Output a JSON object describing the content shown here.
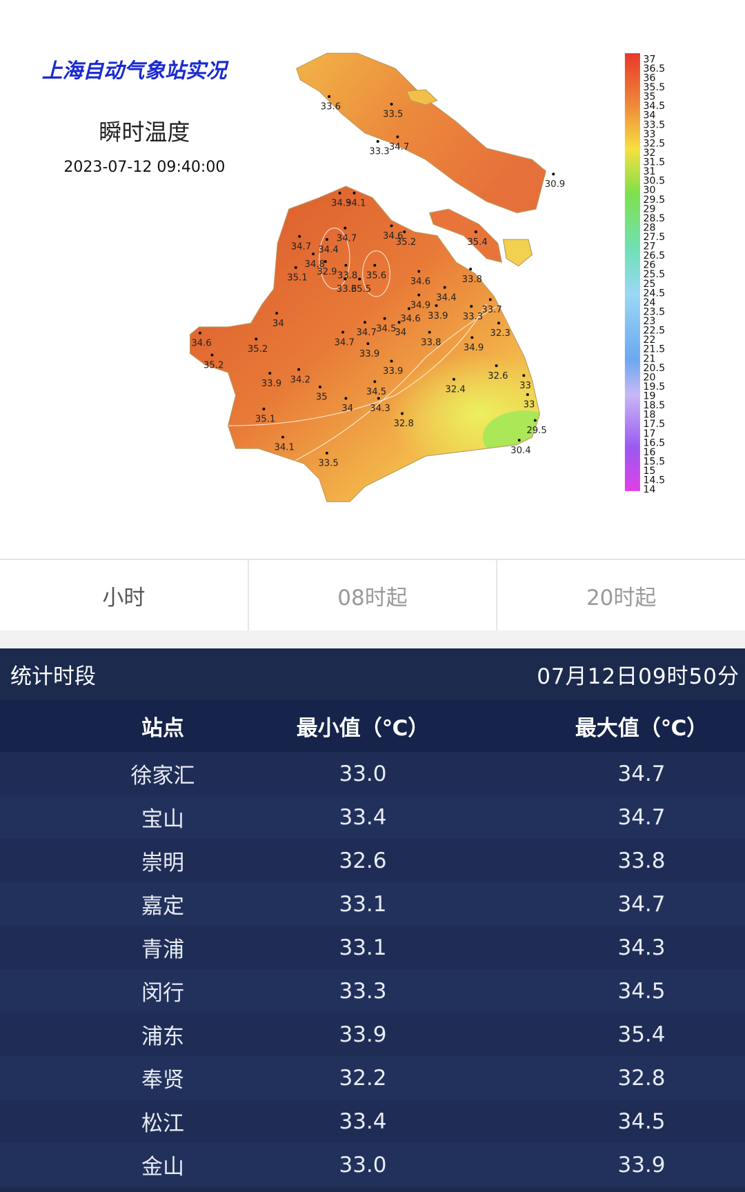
{
  "map": {
    "title": "上海自动气象站实况",
    "subtitle": "瞬时温度",
    "time": "2023-07-12 09:40:00",
    "scale_labels": [
      "37",
      "36.5",
      "36",
      "35.5",
      "35",
      "34.5",
      "34",
      "33.5",
      "33",
      "32.5",
      "32",
      "31.5",
      "31",
      "30.5",
      "30",
      "29.5",
      "29",
      "28.5",
      "28",
      "27.5",
      "27",
      "26.5",
      "26",
      "25.5",
      "25",
      "24.5",
      "24",
      "23.5",
      "23",
      "22.5",
      "22",
      "21.5",
      "21",
      "20.5",
      "20",
      "19.5",
      "19",
      "18.5",
      "18",
      "17.5",
      "17",
      "16.5",
      "16",
      "15.5",
      "15",
      "14.5",
      "14"
    ],
    "stations": [
      "33.6",
      "33.5",
      "33.3",
      "34.7",
      "30.9",
      "34.9",
      "34.1",
      "34.7",
      "34.4",
      "34.7",
      "34.6",
      "35.2",
      "35.4",
      "34.8",
      "32.9",
      "35.1",
      "33.8",
      "33.6",
      "35.5",
      "35.6",
      "34.6",
      "33.8",
      "34.4",
      "34.9",
      "33.9",
      "33.3",
      "33.7",
      "34",
      "34.6",
      "34.7",
      "34.5",
      "34",
      "32.3",
      "34.6",
      "35.2",
      "34.7",
      "33.9",
      "33.8",
      "34.9",
      "35.2",
      "33.9",
      "32.6",
      "33.9",
      "34.2",
      "33",
      "32.4",
      "35",
      "34.5",
      "34",
      "34.3",
      "33",
      "35.1",
      "32.8",
      "29.5",
      "34.1",
      "30.4",
      "33.5"
    ]
  },
  "tabs": [
    "小时",
    "08时起",
    "20时起"
  ],
  "stats": {
    "label": "统计时段",
    "time": "07月12日09时50分"
  },
  "table": {
    "headers": [
      "站点",
      "最小值（℃）",
      "最大值（℃）"
    ],
    "rows": [
      [
        "徐家汇",
        "33.0",
        "34.7"
      ],
      [
        "宝山",
        "33.4",
        "34.7"
      ],
      [
        "崇明",
        "32.6",
        "33.8"
      ],
      [
        "嘉定",
        "33.1",
        "34.7"
      ],
      [
        "青浦",
        "33.1",
        "34.3"
      ],
      [
        "闵行",
        "33.3",
        "34.5"
      ],
      [
        "浦东",
        "33.9",
        "35.4"
      ],
      [
        "奉贤",
        "32.2",
        "32.8"
      ],
      [
        "松江",
        "33.4",
        "34.5"
      ],
      [
        "金山",
        "33.0",
        "33.9"
      ]
    ]
  }
}
